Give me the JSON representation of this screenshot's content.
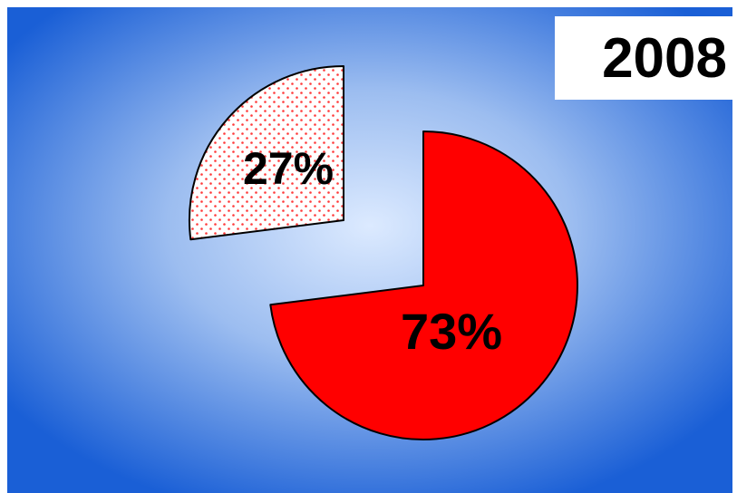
{
  "header": {
    "year": "2008"
  },
  "chart_data": {
    "type": "pie",
    "title": "2008",
    "slices": [
      {
        "label": "73%",
        "value": 73,
        "color": "#ff0000",
        "pattern": "solid",
        "exploded": true
      },
      {
        "label": "27%",
        "value": 27,
        "color": "#ff3b3b",
        "pattern": "dotted",
        "exploded": true
      }
    ],
    "background_colors": {
      "center": "#dceaff",
      "edge": "#1a5fd6"
    },
    "legend": "none"
  }
}
